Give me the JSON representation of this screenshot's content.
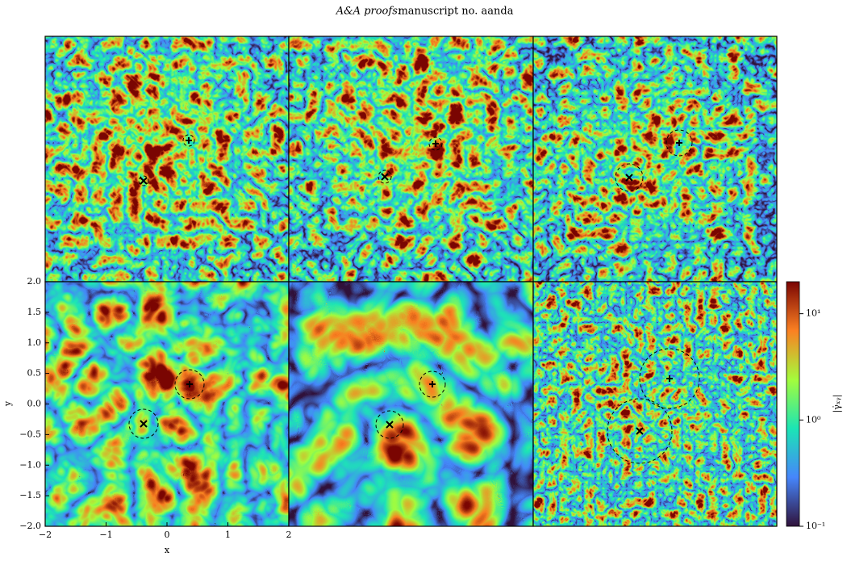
{
  "header": {
    "journal": "A&A proofs:",
    "manuscript": "manuscript no. aanda"
  },
  "chart_data": {
    "type": "heatmap",
    "xlabel": "x",
    "ylabel": "y",
    "xlim": [
      -2,
      2
    ],
    "ylim": [
      -2,
      2
    ],
    "xticks": [
      {
        "value": -2,
        "label": "−2"
      },
      {
        "value": -1,
        "label": "−1"
      },
      0,
      1,
      2
    ],
    "yticks": [
      {
        "value": -2,
        "label": "−2.0"
      },
      {
        "value": -1.5,
        "label": "−1.5"
      },
      {
        "value": -1,
        "label": "−1.0"
      },
      {
        "value": -0.5,
        "label": "−0.5"
      },
      {
        "value": 0,
        "label": "0.0"
      },
      {
        "value": 0.5,
        "label": "0.5"
      },
      {
        "value": 1,
        "label": "1.0"
      },
      {
        "value": 1.5,
        "label": "1.5"
      },
      {
        "value": 2,
        "label": "2.0"
      }
    ],
    "colorbar": {
      "label": "|γ̇ₓᵧ|",
      "log": true,
      "lim": [
        0.1,
        20
      ],
      "ticks": [
        {
          "value": 0.1,
          "label": "10⁻¹"
        },
        {
          "value": 1,
          "label": "10⁰"
        },
        {
          "value": 10,
          "label": "10¹"
        }
      ]
    }
  }
}
